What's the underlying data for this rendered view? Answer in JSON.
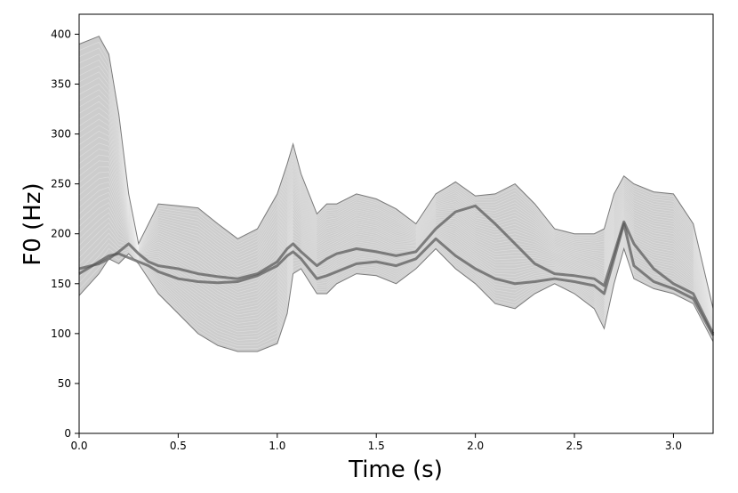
{
  "chart_data": {
    "type": "area",
    "title": "",
    "xlabel": "Time (s)",
    "ylabel": "F0 (Hz)",
    "xlim": [
      0.0,
      3.2
    ],
    "ylim": [
      0,
      420
    ],
    "xticks": [
      "0.0",
      "0.5",
      "1.0",
      "1.5",
      "2.0",
      "2.5",
      "3.0"
    ],
    "yticks": [
      "0",
      "50",
      "100",
      "150",
      "200",
      "250",
      "300",
      "350",
      "400"
    ],
    "grid": false,
    "legend": "none",
    "colors": {
      "fill": "#c8c8c8",
      "dense": "#555555",
      "axes": "#000000"
    },
    "x": [
      0.0,
      0.1,
      0.15,
      0.2,
      0.25,
      0.3,
      0.35,
      0.4,
      0.5,
      0.6,
      0.7,
      0.8,
      0.9,
      1.0,
      1.05,
      1.08,
      1.12,
      1.2,
      1.25,
      1.3,
      1.4,
      1.5,
      1.6,
      1.7,
      1.8,
      1.9,
      2.0,
      2.1,
      2.2,
      2.3,
      2.4,
      2.5,
      2.6,
      2.65,
      2.7,
      2.75,
      2.8,
      2.9,
      3.0,
      3.1,
      3.2
    ],
    "series": [
      {
        "values": [
          390,
          398,
          380,
          320,
          240,
          190,
          210,
          230,
          228,
          226,
          210,
          195,
          205,
          240,
          270,
          290,
          260,
          220,
          230,
          230,
          240,
          235,
          225,
          210,
          240,
          252,
          238,
          240,
          250,
          230,
          205,
          200,
          200,
          205,
          240,
          258,
          250,
          242,
          240,
          210,
          125
        ]
      },
      {
        "values": [
          138,
          160,
          175,
          170,
          180,
          170,
          155,
          140,
          120,
          100,
          88,
          82,
          82,
          90,
          120,
          160,
          165,
          140,
          140,
          150,
          160,
          158,
          150,
          165,
          185,
          165,
          150,
          130,
          125,
          140,
          150,
          140,
          125,
          105,
          150,
          185,
          155,
          145,
          140,
          130,
          92
        ]
      },
      {
        "values": [
          160,
          172,
          178,
          180,
          176,
          172,
          168,
          162,
          155,
          152,
          151,
          152,
          158,
          168,
          178,
          182,
          175,
          155,
          158,
          162,
          170,
          172,
          168,
          175,
          195,
          178,
          165,
          155,
          150,
          152,
          155,
          152,
          148,
          140,
          175,
          210,
          168,
          152,
          145,
          135,
          98
        ]
      },
      {
        "values": [
          165,
          170,
          175,
          182,
          190,
          180,
          172,
          168,
          165,
          160,
          157,
          155,
          160,
          172,
          185,
          190,
          182,
          168,
          175,
          180,
          185,
          182,
          178,
          182,
          205,
          222,
          228,
          210,
          190,
          170,
          160,
          158,
          155,
          148,
          180,
          212,
          190,
          165,
          150,
          140,
          100
        ]
      }
    ]
  }
}
